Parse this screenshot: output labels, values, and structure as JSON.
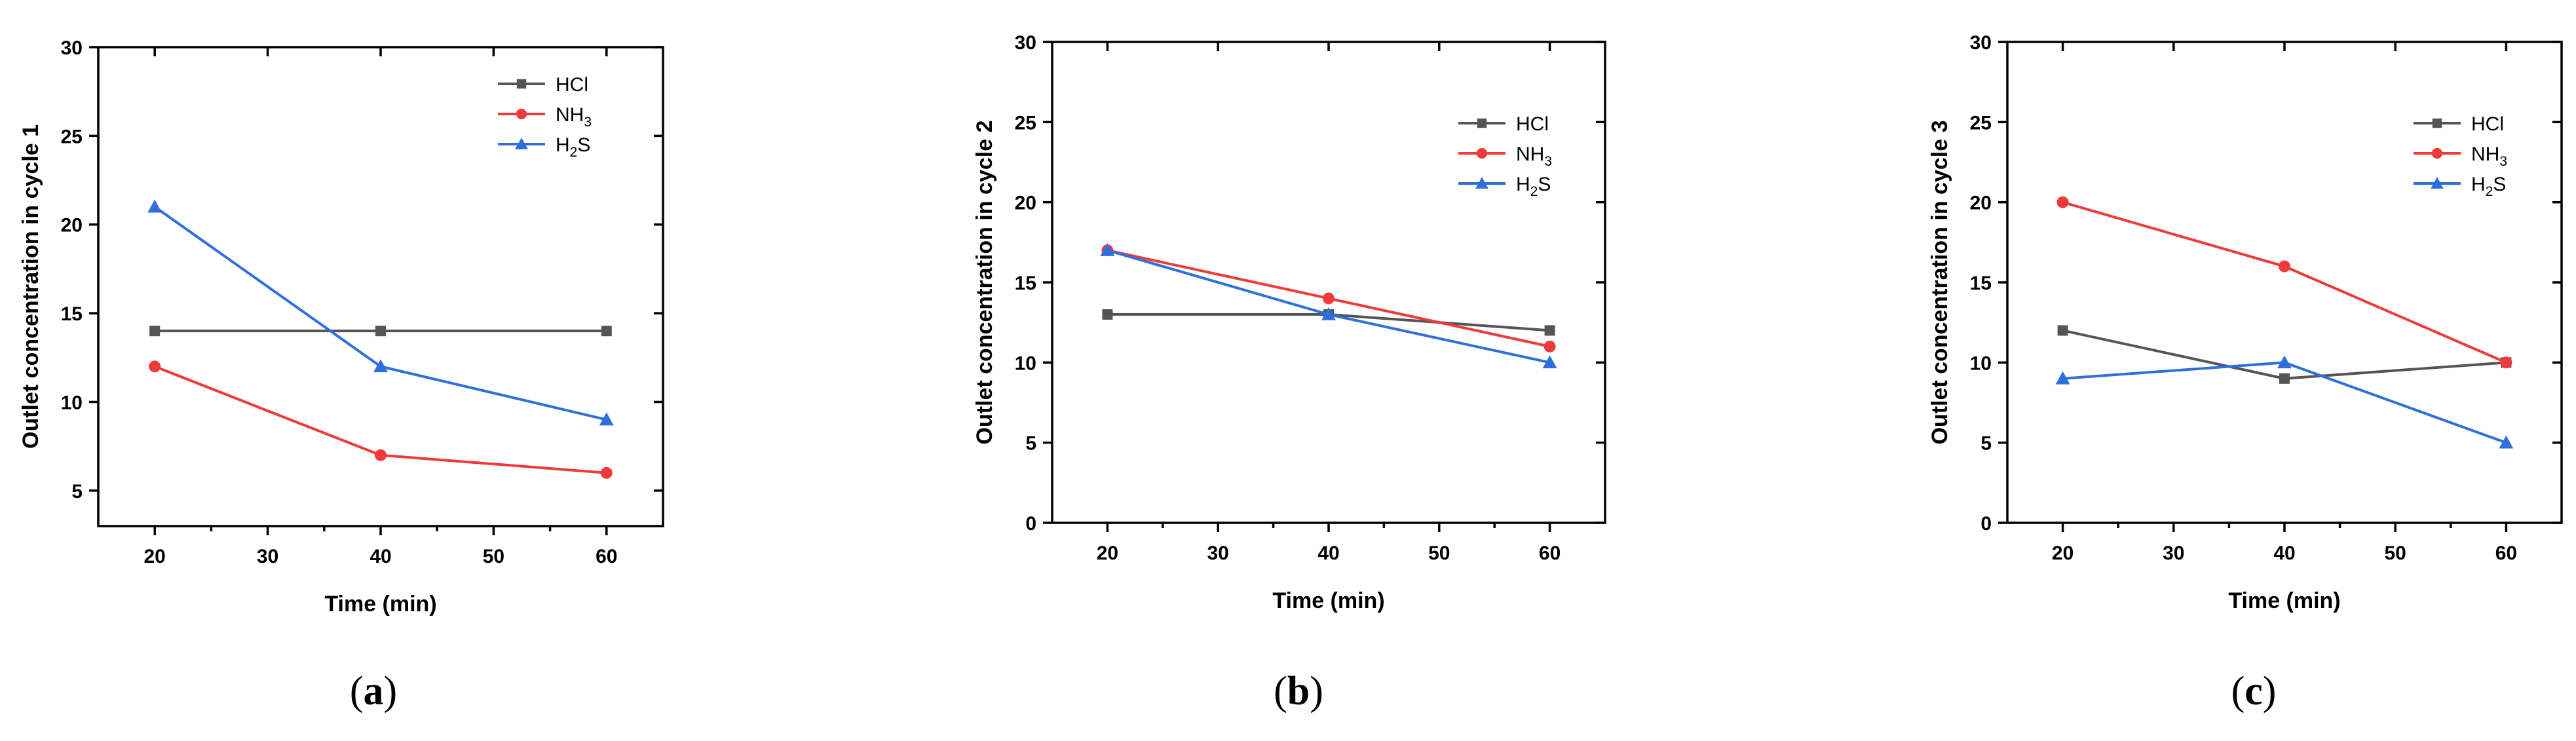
{
  "chart_data": [
    {
      "type": "line",
      "panel_label": "a",
      "xlabel": "Time (min)",
      "ylabel": "Outlet concentration in cycle 1",
      "xlim": [
        15,
        65
      ],
      "ylim": [
        3,
        30
      ],
      "x_ticks": [
        20,
        30,
        40,
        50,
        60
      ],
      "y_ticks": [
        5,
        10,
        15,
        20,
        25,
        30
      ],
      "legend_position": "top-right",
      "x": [
        20,
        40,
        60
      ],
      "series": [
        {
          "name": "HCl",
          "label_main": "HCl",
          "label_sub": "",
          "label_tail": "",
          "color": "#555555",
          "marker": "square",
          "values": [
            14,
            14,
            14
          ]
        },
        {
          "name": "NH3",
          "label_main": "NH",
          "label_sub": "3",
          "label_tail": "",
          "color": "#ee3a3a",
          "marker": "circle",
          "values": [
            12,
            7,
            6
          ]
        },
        {
          "name": "H2S",
          "label_main": "H",
          "label_sub": "2",
          "label_tail": "S",
          "color": "#2f6fdc",
          "marker": "triangle",
          "values": [
            21,
            12,
            9
          ]
        }
      ]
    },
    {
      "type": "line",
      "panel_label": "b",
      "xlabel": "Time (min)",
      "ylabel": "Outlet concentration in cycle 2",
      "xlim": [
        15,
        65
      ],
      "ylim": [
        0,
        30
      ],
      "x_ticks": [
        20,
        30,
        40,
        50,
        60
      ],
      "y_ticks": [
        0,
        5,
        10,
        15,
        20,
        25,
        30
      ],
      "legend_position": "top-right",
      "x": [
        20,
        40,
        60
      ],
      "series": [
        {
          "name": "HCl",
          "label_main": "HCl",
          "label_sub": "",
          "label_tail": "",
          "color": "#555555",
          "marker": "square",
          "values": [
            13,
            13,
            12
          ]
        },
        {
          "name": "NH3",
          "label_main": "NH",
          "label_sub": "3",
          "label_tail": "",
          "color": "#ee3a3a",
          "marker": "circle",
          "values": [
            17,
            14,
            11
          ]
        },
        {
          "name": "H2S",
          "label_main": "H",
          "label_sub": "2",
          "label_tail": "S",
          "color": "#2f6fdc",
          "marker": "triangle",
          "values": [
            17,
            13,
            10
          ]
        }
      ]
    },
    {
      "type": "line",
      "panel_label": "c",
      "xlabel": "Time (min)",
      "ylabel": "Outlet concentration in cycle 3",
      "xlim": [
        15,
        65
      ],
      "ylim": [
        0,
        30
      ],
      "x_ticks": [
        20,
        30,
        40,
        50,
        60
      ],
      "y_ticks": [
        0,
        5,
        10,
        15,
        20,
        25,
        30
      ],
      "legend_position": "top-right",
      "x": [
        20,
        40,
        60
      ],
      "series": [
        {
          "name": "HCl",
          "label_main": "HCl",
          "label_sub": "",
          "label_tail": "",
          "color": "#555555",
          "marker": "square",
          "values": [
            12,
            9,
            10
          ]
        },
        {
          "name": "NH3",
          "label_main": "NH",
          "label_sub": "3",
          "label_tail": "",
          "color": "#ee3a3a",
          "marker": "circle",
          "values": [
            20,
            16,
            10
          ]
        },
        {
          "name": "H2S",
          "label_main": "H",
          "label_sub": "2",
          "label_tail": "S",
          "color": "#2f6fdc",
          "marker": "triangle",
          "values": [
            9,
            10,
            5
          ]
        }
      ]
    }
  ]
}
